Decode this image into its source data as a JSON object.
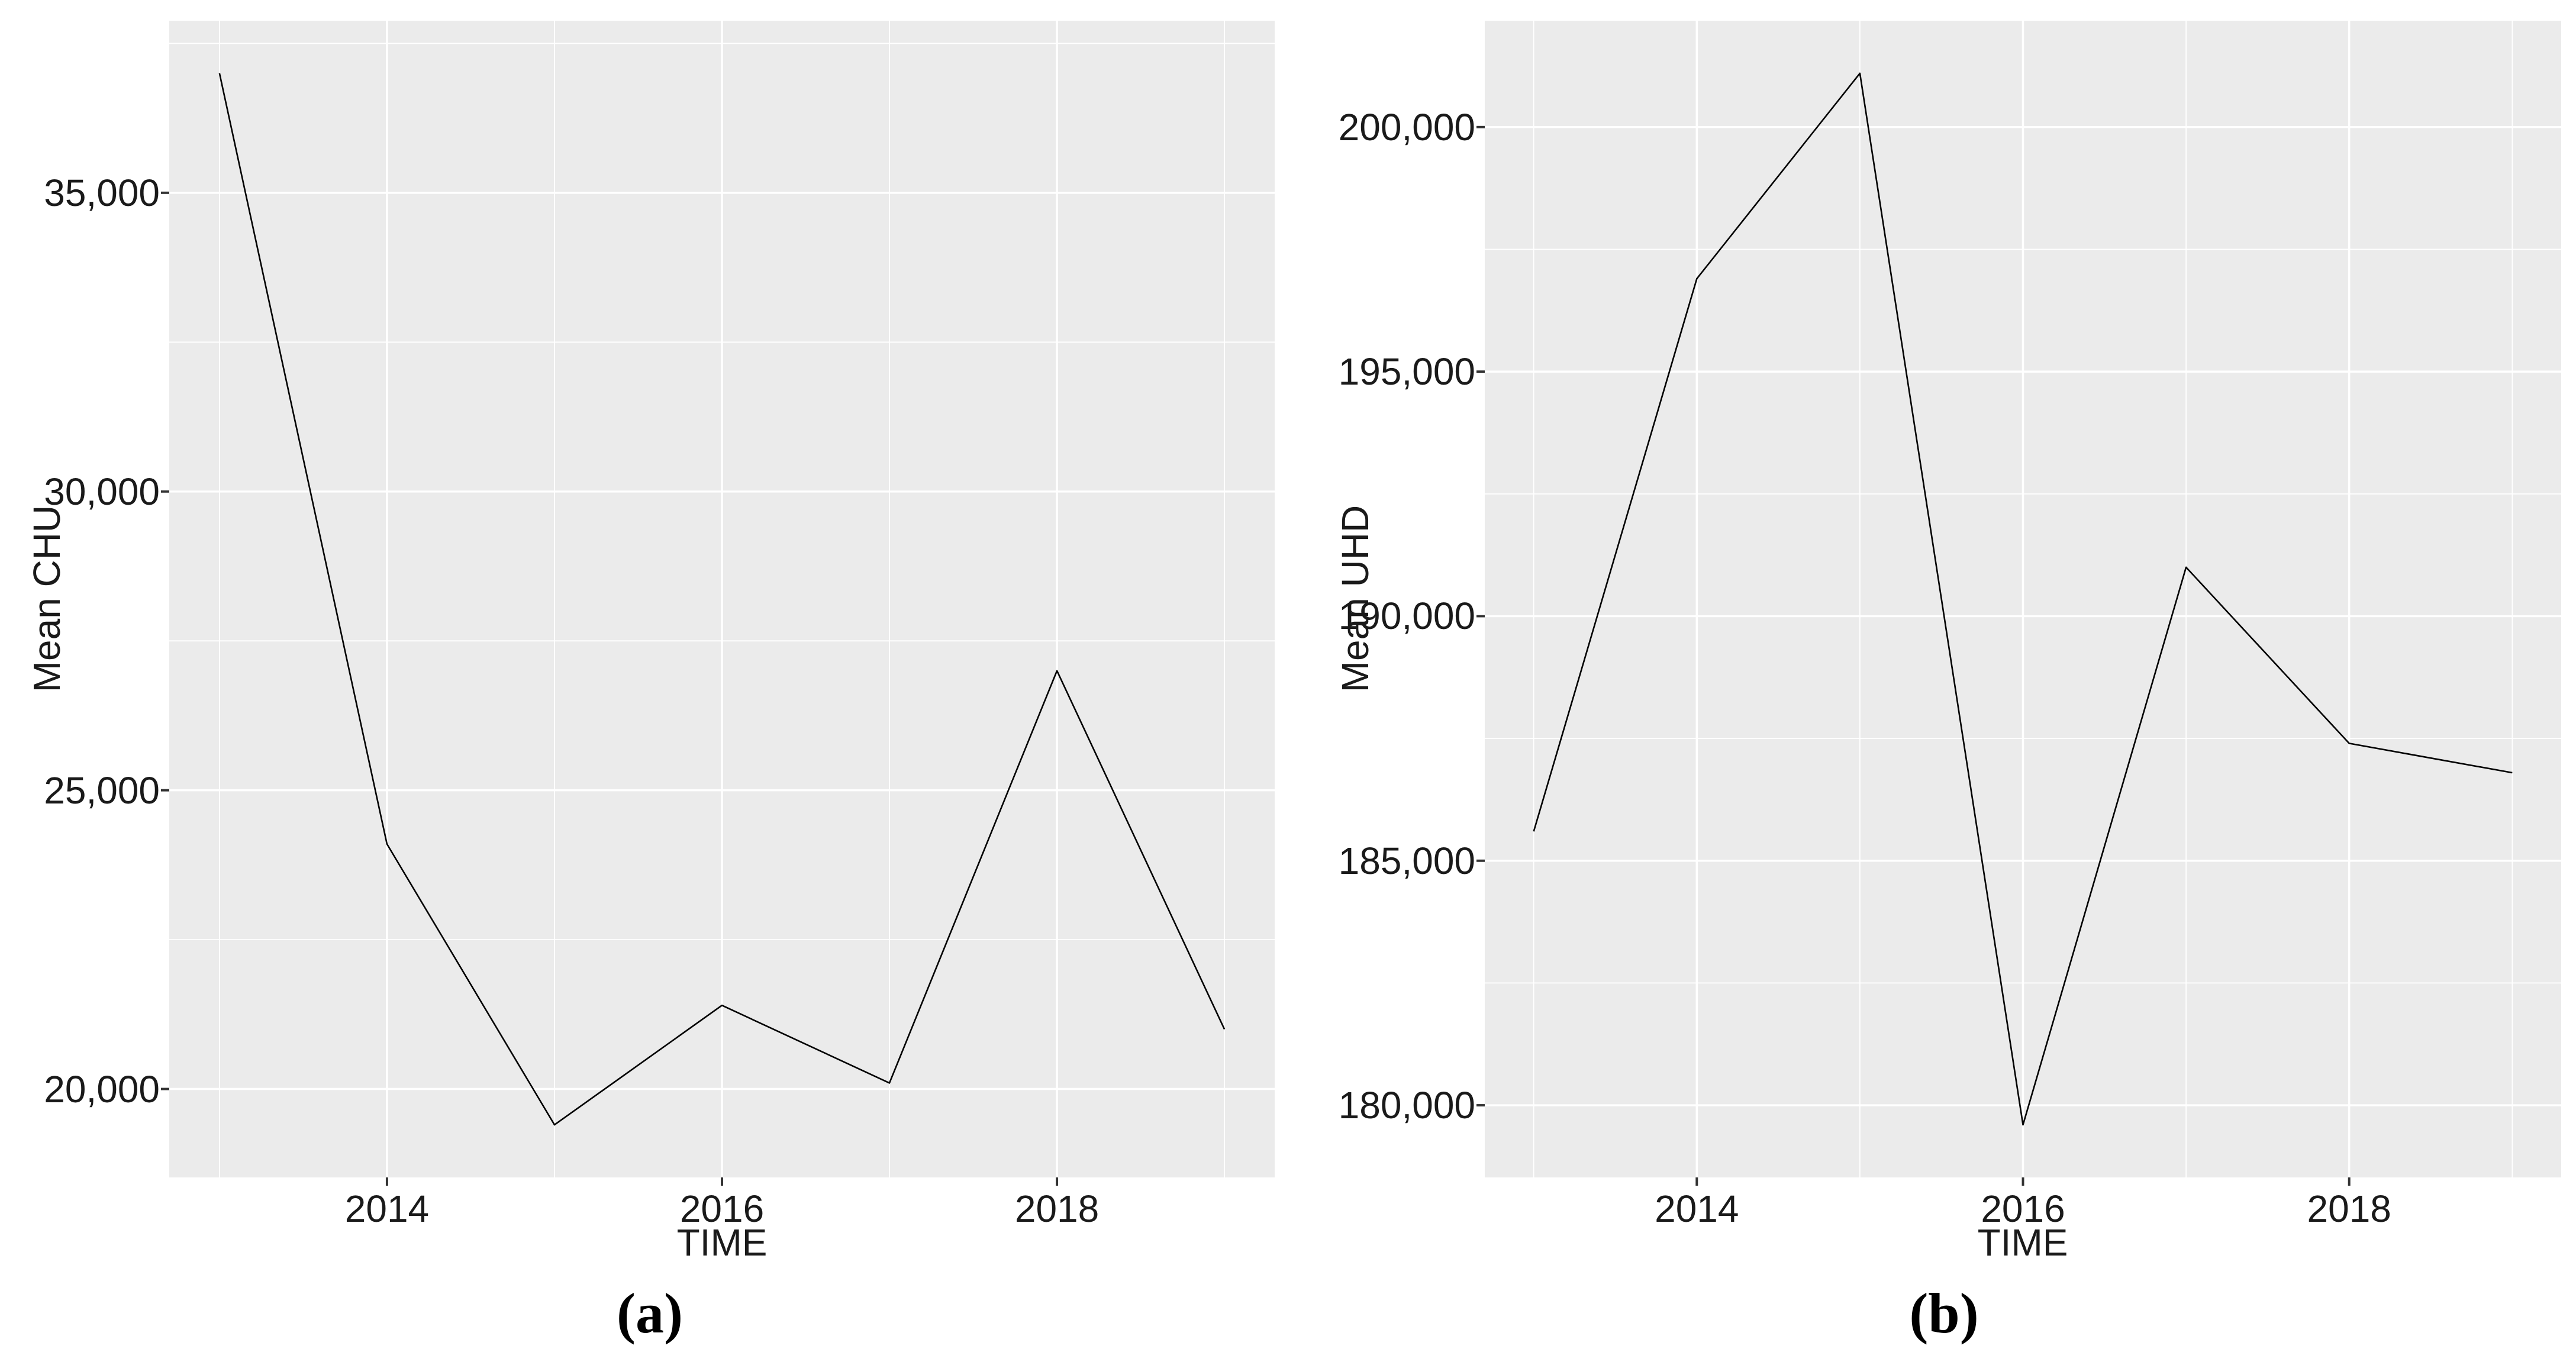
{
  "figure": {
    "background": "#FFFFFF",
    "panel_background": "#EBEBEB",
    "gridline_color": "#FFFFFF",
    "line_color": "#000000",
    "tick_mark_color": "#333333",
    "axis_text_color": "#1A1A1A",
    "caption_color": "#000000"
  },
  "chart_data": [
    {
      "type": "line",
      "caption": "(a)",
      "xlabel": "TIME",
      "ylabel": "Mean CHU",
      "x": [
        2013,
        2014,
        2015,
        2016,
        2017,
        2018,
        2019
      ],
      "series": [
        {
          "name": "Mean CHU",
          "values": [
            37000,
            24100,
            19400,
            21400,
            20100,
            27000,
            21000
          ]
        }
      ],
      "x_ticks": [
        2014,
        2016,
        2018
      ],
      "x_tick_labels": [
        "2014",
        "2016",
        "2018"
      ],
      "x_minor": [
        2013,
        2015,
        2017,
        2019
      ],
      "y_ticks": [
        20000,
        25000,
        30000,
        35000
      ],
      "y_tick_labels": [
        "20,000",
        "25,000",
        "30,000",
        "35,000"
      ],
      "y_minor": [
        22500,
        27500,
        32500,
        37500
      ],
      "xlim": [
        2012.7,
        2019.3
      ],
      "ylim": [
        18520,
        37880
      ],
      "grid": true,
      "legend_position": "none"
    },
    {
      "type": "line",
      "caption": "(b)",
      "xlabel": "TIME",
      "ylabel": "Mean UHD",
      "x": [
        2013,
        2014,
        2015,
        2016,
        2017,
        2018,
        2019
      ],
      "series": [
        {
          "name": "Mean UHD",
          "values": [
            185600,
            196900,
            201100,
            179600,
            191000,
            187400,
            186800
          ]
        }
      ],
      "x_ticks": [
        2014,
        2016,
        2018
      ],
      "x_tick_labels": [
        "2014",
        "2016",
        "2018"
      ],
      "x_minor": [
        2013,
        2015,
        2017,
        2019
      ],
      "y_ticks": [
        180000,
        185000,
        190000,
        195000,
        200000
      ],
      "y_tick_labels": [
        "180,000",
        "185,000",
        "190,000",
        "195,000",
        "200,000"
      ],
      "y_minor": [
        182500,
        187500,
        192500,
        197500
      ],
      "xlim": [
        2012.7,
        2019.3
      ],
      "ylim": [
        178525,
        202175
      ],
      "grid": true,
      "legend_position": "none"
    }
  ]
}
